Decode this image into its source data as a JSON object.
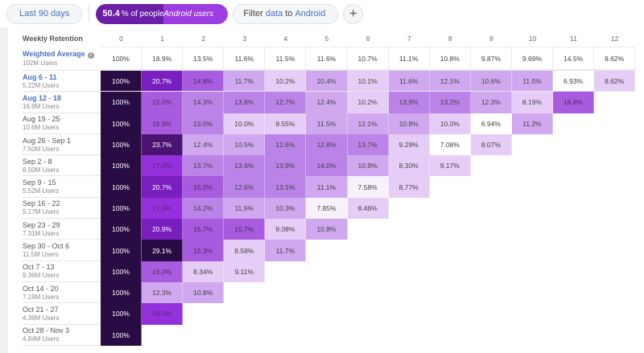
{
  "toolbar": {
    "date_range": "Last 90 days",
    "segment_value": "50.4",
    "segment_text": "% of people •",
    "segment_audience": "Android users",
    "filter_prefix": "Filter",
    "filter_field": "data",
    "filter_mid": "to",
    "filter_value": "Android",
    "add_label": "+"
  },
  "table": {
    "title": "Weekly Retention",
    "columns": [
      "0",
      "1",
      "2",
      "3",
      "4",
      "5",
      "6",
      "7",
      "8",
      "9",
      "10",
      "11",
      "12"
    ],
    "average": {
      "label": "Weighted Average",
      "users": "102M Users",
      "values": [
        "100%",
        "18.9%",
        "13.5%",
        "11.6%",
        "11.5%",
        "11.6%",
        "10.7%",
        "11.1%",
        "10.8%",
        "9.87%",
        "9.69%",
        "14.5%",
        "8.62%"
      ]
    },
    "rows": [
      {
        "label": "Aug 6 - 11",
        "users": "5.22M Users",
        "highlight": true,
        "values": [
          "100%",
          "20.7%",
          "14.8%",
          "11.7%",
          "10.2%",
          "10.4%",
          "10.1%",
          "11.6%",
          "12.1%",
          "10.6%",
          "11.5%",
          "6.93%",
          "8.62%"
        ]
      },
      {
        "label": "Aug 12 - 18",
        "users": "16.9M Users",
        "highlight": true,
        "values": [
          "100%",
          "15.0%",
          "14.3%",
          "13.8%",
          "12.7%",
          "12.4%",
          "10.2%",
          "13.9%",
          "13.2%",
          "12.3%",
          "8.19%",
          "16.8%"
        ]
      },
      {
        "label": "Aug 19 - 25",
        "users": "10.6M Users",
        "values": [
          "100%",
          "15.9%",
          "13.0%",
          "10.0%",
          "9.55%",
          "11.5%",
          "12.1%",
          "10.8%",
          "10.0%",
          "6.94%",
          "11.2%"
        ]
      },
      {
        "label": "Aug 26 - Sep 1",
        "users": "7.50M Users",
        "values": [
          "100%",
          "23.7%",
          "12.4%",
          "10.5%",
          "12.6%",
          "12.8%",
          "13.7%",
          "9.29%",
          "7.08%",
          "8.07%"
        ]
      },
      {
        "label": "Sep 2 - 8",
        "users": "6.50M Users",
        "values": [
          "100%",
          "17.0%",
          "13.7%",
          "13.4%",
          "13.9%",
          "14.0%",
          "10.9%",
          "8.30%",
          "9.17%"
        ]
      },
      {
        "label": "Sep 9 - 15",
        "users": "5.52M Users",
        "values": [
          "100%",
          "20.7%",
          "15.0%",
          "12.6%",
          "13.1%",
          "11.1%",
          "7.58%",
          "8.77%"
        ]
      },
      {
        "label": "Sep 16 - 22",
        "users": "5.17M Users",
        "values": [
          "100%",
          "17.9%",
          "14.2%",
          "11.9%",
          "10.3%",
          "7.85%",
          "8.46%"
        ]
      },
      {
        "label": "Sep 23 - 29",
        "users": "7.31M Users",
        "values": [
          "100%",
          "20.9%",
          "16.7%",
          "15.7%",
          "9.08%",
          "10.8%"
        ]
      },
      {
        "label": "Sep 30 - Oct 6",
        "users": "11.5M Users",
        "values": [
          "100%",
          "29.1%",
          "15.3%",
          "8.58%",
          "11.7%"
        ]
      },
      {
        "label": "Oct 7 - 13",
        "users": "9.36M Users",
        "values": [
          "100%",
          "16.0%",
          "8.34%",
          "9.11%"
        ]
      },
      {
        "label": "Oct 14 - 20",
        "users": "7.19M Users",
        "values": [
          "100%",
          "12.3%",
          "10.8%"
        ]
      },
      {
        "label": "Oct 21 - 27",
        "users": "4.36M Users",
        "values": [
          "100%",
          "19.0%"
        ]
      },
      {
        "label": "Oct 28 - Nov 3",
        "users": "4.84M Users",
        "values": [
          "100%"
        ]
      }
    ]
  },
  "colors": {
    "accent": "#9b3de0",
    "accent_dark": "#6a1fa6",
    "link": "#4a72c2",
    "cell_max": "#2a0c45"
  }
}
